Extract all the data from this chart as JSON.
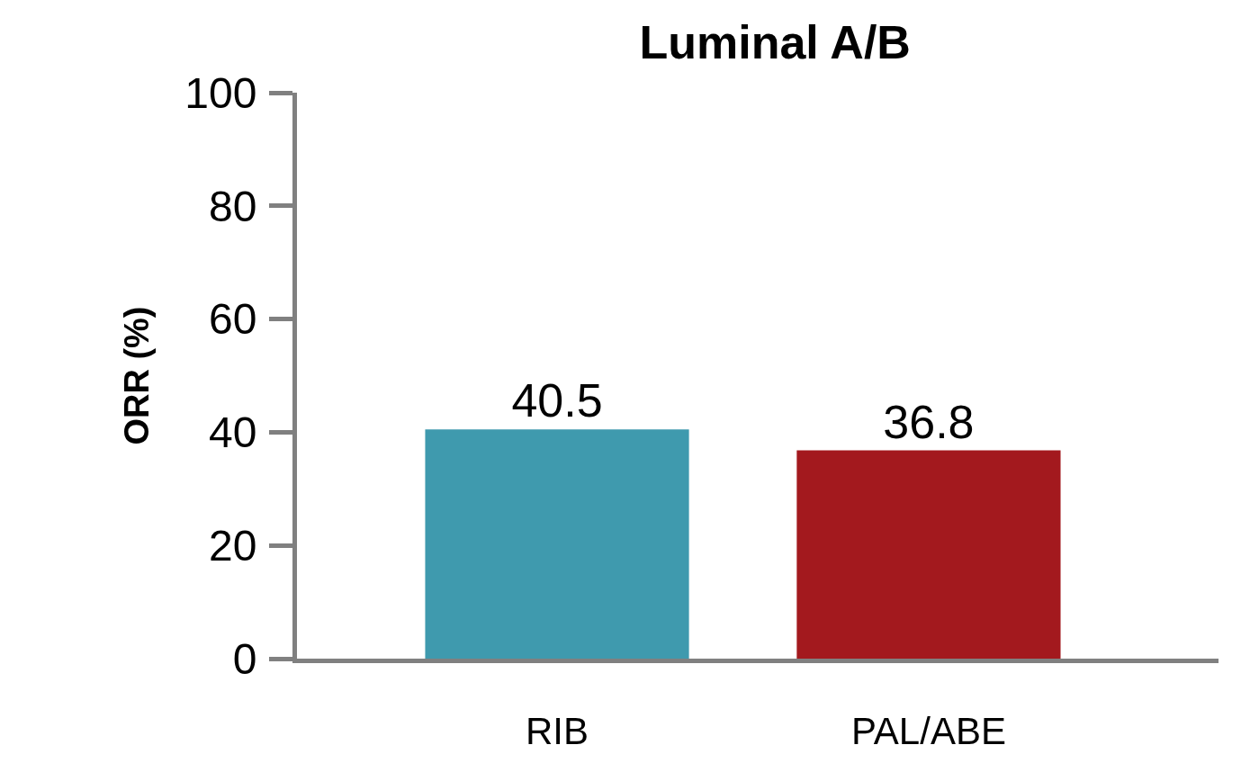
{
  "chart_data": {
    "type": "bar",
    "title": "Luminal A/B",
    "ylabel": "ORR (%)",
    "categories": [
      "RIB",
      "PAL/ABE"
    ],
    "values": [
      40.5,
      36.8
    ],
    "colors": [
      "#3f9aae",
      "#a3191e"
    ],
    "ylim": [
      0,
      100
    ],
    "yticks": [
      0,
      20,
      40,
      60,
      80,
      100
    ],
    "data_labels": true
  }
}
